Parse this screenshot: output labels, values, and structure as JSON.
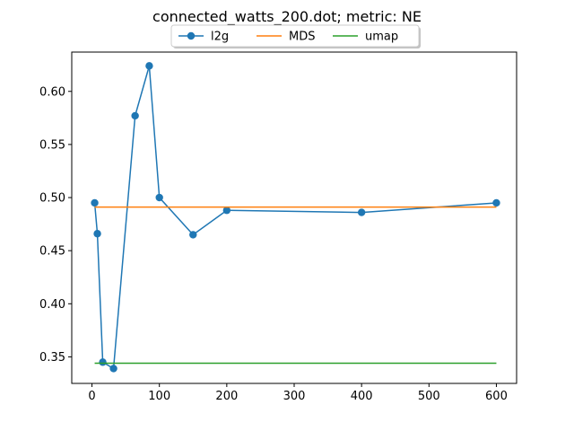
{
  "chart_data": {
    "type": "line",
    "title": "connected_watts_200.dot; metric: NE",
    "xlabel": "",
    "ylabel": "",
    "xlim": [
      -30,
      630
    ],
    "ylim": [
      0.325,
      0.637
    ],
    "xticks": [
      0,
      100,
      200,
      300,
      400,
      500,
      600
    ],
    "xtick_labels": [
      "0",
      "100",
      "200",
      "300",
      "400",
      "500",
      "600"
    ],
    "yticks": [
      0.35,
      0.4,
      0.45,
      0.5,
      0.55,
      0.6
    ],
    "ytick_labels": [
      "0.35",
      "0.40",
      "0.45",
      "0.50",
      "0.55",
      "0.60"
    ],
    "grid": false,
    "legend_position": "top-center",
    "series": [
      {
        "name": "l2g",
        "color": "#1f77b4",
        "marker": "circle",
        "x": [
          4,
          8,
          16,
          32,
          64,
          85,
          100,
          150,
          200,
          400,
          600
        ],
        "y": [
          0.495,
          0.466,
          0.345,
          0.339,
          0.577,
          0.624,
          0.5,
          0.465,
          0.488,
          0.486,
          0.495
        ]
      },
      {
        "name": "MDS",
        "color": "#ff7f0e",
        "marker": "none",
        "x": [
          4,
          600
        ],
        "y": [
          0.491,
          0.491
        ]
      },
      {
        "name": "umap",
        "color": "#2ca02c",
        "marker": "none",
        "x": [
          4,
          600
        ],
        "y": [
          0.344,
          0.344
        ]
      }
    ]
  }
}
